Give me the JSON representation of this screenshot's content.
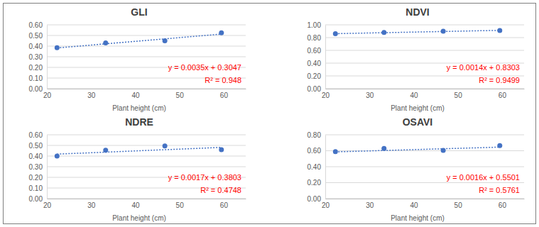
{
  "chart_data": [
    {
      "type": "scatter",
      "title": "GLI",
      "x_label": "Plant height (cm)",
      "x": [
        22.3,
        33.3,
        46.7,
        59.5
      ],
      "series": [
        {
          "type": "scatter",
          "marker": "circle",
          "color": "#4472c4",
          "values": [
            0.385,
            0.43,
            0.45,
            0.525
          ]
        },
        {
          "type": "line",
          "line_style": "dotted",
          "color": "#4472c4",
          "values": [
            0.3828,
            0.4213,
            0.4682,
            0.513
          ]
        }
      ],
      "annotations": [
        "y = 0.0035x + 0.3047",
        "R² = 0.948"
      ],
      "xlim": [
        20,
        65
      ],
      "xticks": [
        20,
        30,
        40,
        50,
        60
      ],
      "ylim": [
        0,
        0.6
      ],
      "yticks": [
        {
          "value": 0,
          "label": "0.00"
        },
        {
          "value": 0.1,
          "label": "0.10"
        },
        {
          "value": 0.2,
          "label": "0.20"
        },
        {
          "value": 0.3,
          "label": "0.30"
        },
        {
          "value": 0.4,
          "label": "0.40"
        },
        {
          "value": 0.5,
          "label": "0.50"
        },
        {
          "value": 0.6,
          "label": "0.60"
        }
      ],
      "grid": true
    },
    {
      "type": "scatter",
      "title": "NDVI",
      "x_label": "Plant height (cm)",
      "x": [
        22.3,
        33.3,
        46.7,
        59.5
      ],
      "series": [
        {
          "type": "scatter",
          "marker": "circle",
          "color": "#4472c4",
          "values": [
            0.86,
            0.88,
            0.9,
            0.91
          ]
        },
        {
          "type": "line",
          "line_style": "dotted",
          "color": "#4472c4",
          "values": [
            0.8615,
            0.8769,
            0.8957,
            0.9136
          ]
        }
      ],
      "annotations": [
        "y = 0.0014x + 0.8303",
        "R² = 0.9499"
      ],
      "xlim": [
        20,
        65
      ],
      "xticks": [
        20,
        30,
        40,
        50,
        60
      ],
      "ylim": [
        0,
        1
      ],
      "yticks": [
        {
          "value": 0,
          "label": "0.00"
        },
        {
          "value": 0.2,
          "label": "0.20"
        },
        {
          "value": 0.4,
          "label": "0.40"
        },
        {
          "value": 0.6,
          "label": "0.60"
        },
        {
          "value": 0.8,
          "label": "0.80"
        },
        {
          "value": 1,
          "label": "1.00"
        }
      ],
      "grid": true
    },
    {
      "type": "scatter",
      "title": "NDRE",
      "x_label": "Plant height (cm)",
      "x": [
        22.3,
        33.3,
        46.7,
        59.5
      ],
      "series": [
        {
          "type": "scatter",
          "marker": "circle",
          "color": "#4472c4",
          "values": [
            0.4,
            0.455,
            0.495,
            0.46
          ]
        },
        {
          "type": "line",
          "line_style": "dotted",
          "color": "#4472c4",
          "values": [
            0.4182,
            0.4369,
            0.4597,
            0.4815
          ]
        }
      ],
      "annotations": [
        "y = 0.0017x + 0.3803",
        "R² = 0.4748"
      ],
      "xlim": [
        20,
        65
      ],
      "xticks": [
        20,
        30,
        40,
        50,
        60
      ],
      "ylim": [
        0,
        0.6
      ],
      "yticks": [
        {
          "value": 0,
          "label": "0.00"
        },
        {
          "value": 0.1,
          "label": "0.10"
        },
        {
          "value": 0.2,
          "label": "0.20"
        },
        {
          "value": 0.3,
          "label": "0.30"
        },
        {
          "value": 0.4,
          "label": "0.40"
        },
        {
          "value": 0.5,
          "label": "0.50"
        },
        {
          "value": 0.6,
          "label": "0.60"
        }
      ],
      "grid": true
    },
    {
      "type": "scatter",
      "title": "OSAVI",
      "x_label": "Plant height (cm)",
      "x": [
        22.3,
        33.3,
        46.7,
        59.5
      ],
      "series": [
        {
          "type": "scatter",
          "marker": "circle",
          "color": "#4472c4",
          "values": [
            0.59,
            0.63,
            0.605,
            0.665
          ]
        },
        {
          "type": "line",
          "line_style": "dotted",
          "color": "#4472c4",
          "values": [
            0.5858,
            0.6034,
            0.6248,
            0.6453
          ]
        }
      ],
      "annotations": [
        "y = 0.0016x + 0.5501",
        "R² = 0.5761"
      ],
      "xlim": [
        20,
        65
      ],
      "xticks": [
        20,
        30,
        40,
        50,
        60
      ],
      "ylim": [
        0,
        0.8
      ],
      "yticks": [
        {
          "value": 0,
          "label": "0.00"
        },
        {
          "value": 0.2,
          "label": "0.20"
        },
        {
          "value": 0.4,
          "label": "0.40"
        },
        {
          "value": 0.6,
          "label": "0.60"
        },
        {
          "value": 0.8,
          "label": "0.80"
        }
      ],
      "grid": true
    }
  ]
}
